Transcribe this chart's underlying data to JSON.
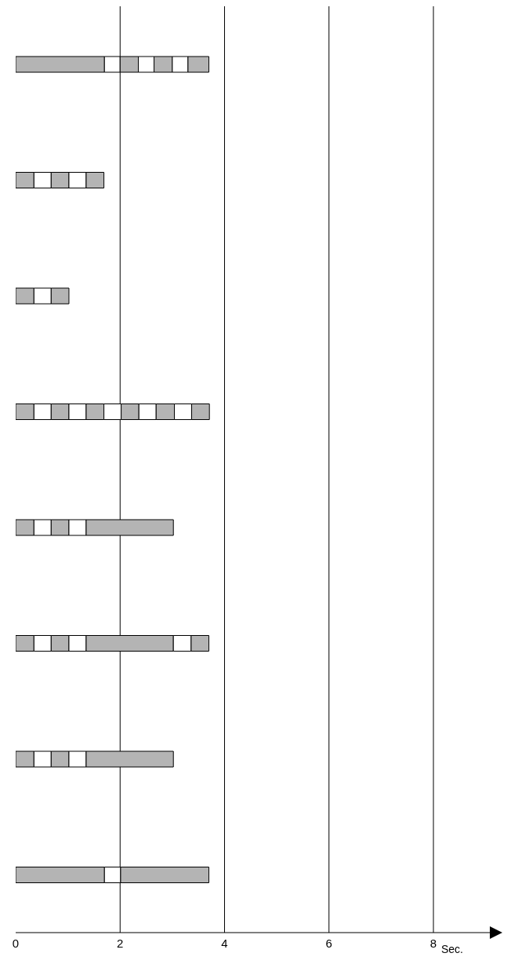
{
  "chart_data": {
    "type": "bar",
    "orientation": "horizontal",
    "stacked": true,
    "xlabel": "Sec.",
    "categories": [
      null,
      null,
      null,
      null,
      null,
      null,
      null,
      null
    ],
    "xlim": [
      0,
      9.2
    ],
    "xticks": [
      0,
      2,
      4,
      6,
      8
    ],
    "grid": "x",
    "tick_labels": "x",
    "series": [
      {
        "color": "#b4b4b4",
        "values": [
          1.7,
          0.35,
          0.35,
          0.35,
          0.35,
          0.35,
          0.35,
          1.7
        ]
      },
      {
        "color": "#ffffff",
        "values": [
          0.3,
          0.33,
          0.33,
          0.33,
          0.33,
          0.33,
          0.33,
          0.31
        ]
      },
      {
        "color": "#b4b4b4",
        "values": [
          0.35,
          0.34,
          0.34,
          0.34,
          0.34,
          0.34,
          0.34,
          1.69
        ]
      },
      {
        "color": "#ffffff",
        "values": [
          0.3,
          0.33,
          null,
          0.33,
          0.33,
          0.33,
          0.33,
          null
        ]
      },
      {
        "color": "#b4b4b4",
        "values": [
          0.35,
          0.34,
          null,
          0.34,
          1.67,
          1.67,
          1.67,
          null
        ]
      },
      {
        "color": "#ffffff",
        "values": [
          0.3,
          null,
          null,
          0.33,
          null,
          0.34,
          null,
          null
        ]
      },
      {
        "color": "#b4b4b4",
        "values": [
          0.4,
          null,
          null,
          0.34,
          null,
          0.34,
          null,
          null
        ]
      },
      {
        "color": "#ffffff",
        "values": [
          null,
          null,
          null,
          0.33,
          null,
          null,
          null,
          null
        ]
      },
      {
        "color": "#b4b4b4",
        "values": [
          null,
          null,
          null,
          0.35,
          null,
          null,
          null,
          null
        ]
      },
      {
        "color": "#ffffff",
        "values": [
          null,
          null,
          null,
          0.33,
          null,
          null,
          null,
          null
        ]
      },
      {
        "color": "#b4b4b4",
        "values": [
          null,
          null,
          null,
          0.34,
          null,
          null,
          null,
          null
        ]
      }
    ]
  }
}
